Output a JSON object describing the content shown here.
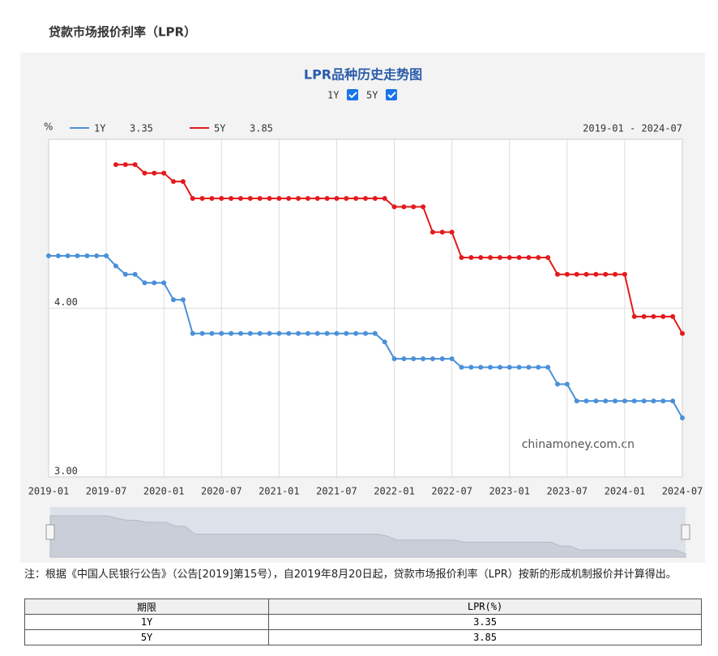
{
  "header": {
    "title": "贷款市场报价利率（LPR）"
  },
  "chart_data": {
    "type": "line",
    "title": "LPR品种历史走势图",
    "y_unit": "%",
    "range_label": "2019-01 - 2024-07",
    "watermark": "chinamoney.com.cn",
    "x": [
      "2019-01",
      "2019-02",
      "2019-03",
      "2019-04",
      "2019-05",
      "2019-06",
      "2019-07",
      "2019-08",
      "2019-09",
      "2019-10",
      "2019-11",
      "2019-12",
      "2020-01",
      "2020-02",
      "2020-03",
      "2020-04",
      "2020-05",
      "2020-06",
      "2020-07",
      "2020-08",
      "2020-09",
      "2020-10",
      "2020-11",
      "2020-12",
      "2021-01",
      "2021-02",
      "2021-03",
      "2021-04",
      "2021-05",
      "2021-06",
      "2021-07",
      "2021-08",
      "2021-09",
      "2021-10",
      "2021-11",
      "2021-12",
      "2022-01",
      "2022-02",
      "2022-03",
      "2022-04",
      "2022-05",
      "2022-06",
      "2022-07",
      "2022-08",
      "2022-09",
      "2022-10",
      "2022-11",
      "2022-12",
      "2023-01",
      "2023-02",
      "2023-03",
      "2023-04",
      "2023-05",
      "2023-06",
      "2023-07",
      "2023-08",
      "2023-09",
      "2023-10",
      "2023-11",
      "2023-12",
      "2024-01",
      "2024-02",
      "2024-03",
      "2024-04",
      "2024-05",
      "2024-06",
      "2024-07"
    ],
    "xticks": [
      "2019-01",
      "2019-07",
      "2020-01",
      "2020-07",
      "2021-01",
      "2021-07",
      "2022-01",
      "2022-07",
      "2023-01",
      "2023-07",
      "2024-01",
      "2024-07"
    ],
    "series": [
      {
        "name": "1Y",
        "color": "#4a90d9",
        "values": [
          4.31,
          4.31,
          4.31,
          4.31,
          4.31,
          4.31,
          4.31,
          4.25,
          4.2,
          4.2,
          4.15,
          4.15,
          4.15,
          4.05,
          4.05,
          3.85,
          3.85,
          3.85,
          3.85,
          3.85,
          3.85,
          3.85,
          3.85,
          3.85,
          3.85,
          3.85,
          3.85,
          3.85,
          3.85,
          3.85,
          3.85,
          3.85,
          3.85,
          3.85,
          3.85,
          3.8,
          3.7,
          3.7,
          3.7,
          3.7,
          3.7,
          3.7,
          3.7,
          3.65,
          3.65,
          3.65,
          3.65,
          3.65,
          3.65,
          3.65,
          3.65,
          3.65,
          3.65,
          3.55,
          3.55,
          3.45,
          3.45,
          3.45,
          3.45,
          3.45,
          3.45,
          3.45,
          3.45,
          3.45,
          3.45,
          3.45,
          3.35
        ]
      },
      {
        "name": "5Y",
        "color": "#e31a1c",
        "values": [
          null,
          null,
          null,
          null,
          null,
          null,
          null,
          4.85,
          4.85,
          4.85,
          4.8,
          4.8,
          4.8,
          4.75,
          4.75,
          4.65,
          4.65,
          4.65,
          4.65,
          4.65,
          4.65,
          4.65,
          4.65,
          4.65,
          4.65,
          4.65,
          4.65,
          4.65,
          4.65,
          4.65,
          4.65,
          4.65,
          4.65,
          4.65,
          4.65,
          4.65,
          4.6,
          4.6,
          4.6,
          4.6,
          4.45,
          4.45,
          4.45,
          4.3,
          4.3,
          4.3,
          4.3,
          4.3,
          4.3,
          4.3,
          4.3,
          4.3,
          4.3,
          4.2,
          4.2,
          4.2,
          4.2,
          4.2,
          4.2,
          4.2,
          4.2,
          3.95,
          3.95,
          3.95,
          3.95,
          3.95,
          3.85
        ]
      }
    ],
    "ylim": [
      3,
      5
    ],
    "yticks": [
      {
        "value": 3,
        "label": "3.00"
      },
      {
        "value": 4,
        "label": "4.00"
      }
    ],
    "grid": true
  },
  "note": "注：根据《中国人民银行公告》（公告[2019]第15号），自2019年8月20日起，贷款市场报价利率（LPR）按新的形成机制报价并计算得出。",
  "table": {
    "header": [
      "期限",
      "LPR(%)"
    ],
    "rows": [
      [
        "1Y",
        "3.35"
      ],
      [
        "5Y",
        "3.85"
      ]
    ]
  }
}
